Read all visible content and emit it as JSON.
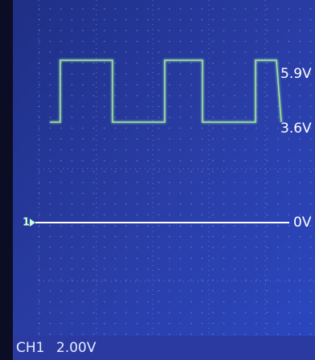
{
  "screen": {
    "levels": {
      "high": "5.9V",
      "low": "3.6V",
      "ground": "0V"
    },
    "channel_marker": "1",
    "status": {
      "channel": "CH1",
      "scale": "2.00V"
    }
  }
}
